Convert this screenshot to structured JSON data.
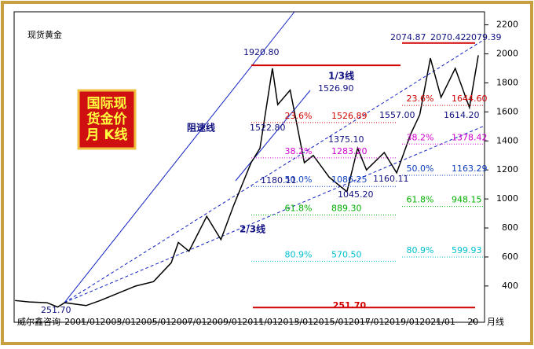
{
  "chart_data": {
    "type": "line",
    "title": "现货黄金",
    "box_title": [
      "国际现",
      "货金价",
      "月 K线"
    ],
    "source": "威尔鑫咨询",
    "period": "月线",
    "xlim": [
      1997.15,
      2023.65
    ],
    "xticks": [
      {
        "value": 2001,
        "label": "2001/01"
      },
      {
        "value": 2003,
        "label": "2003/01"
      },
      {
        "value": 2005,
        "label": "2005/01"
      },
      {
        "value": 2007,
        "label": "2007/01"
      },
      {
        "value": 2009,
        "label": "2009/01"
      },
      {
        "value": 2011,
        "label": "2011/01"
      },
      {
        "value": 2013,
        "label": "2013/01"
      },
      {
        "value": 2015,
        "label": "2015/01"
      },
      {
        "value": 2017,
        "label": "2017/01"
      },
      {
        "value": 2019,
        "label": "2019/01"
      },
      {
        "value": 2021,
        "label": "2021/01"
      },
      {
        "value": 2023,
        "label": "20"
      }
    ],
    "ylim": [
      150,
      2290
    ],
    "yticks": [
      400,
      600,
      800,
      1000,
      1200,
      1400,
      1600,
      1800,
      2000,
      2200
    ],
    "series": [
      {
        "name": "现货黄金",
        "color": "#000000",
        "x": [
          1997.2,
          1998,
          1999,
          1999.6,
          2000,
          2001.2,
          2002,
          2003,
          2004,
          2005,
          2006,
          2006.4,
          2007,
          2008,
          2008.8,
          2009.5,
          2010,
          2010.5,
          2011,
          2011.7,
          2012,
          2012.7,
          2013.5,
          2014,
          2014.9,
          2015.9,
          2016.5,
          2017,
          2018,
          2018.7,
          2019.5,
          2020,
          2020.6,
          2021.2,
          2022,
          2022.8,
          2023.3
        ],
        "values": [
          300,
          290,
          285,
          255,
          285,
          265,
          300,
          350,
          400,
          430,
          560,
          700,
          640,
          880,
          720,
          950,
          1100,
          1250,
          1350,
          1900,
          1650,
          1750,
          1250,
          1300,
          1150,
          1050,
          1350,
          1200,
          1320,
          1180,
          1450,
          1580,
          1970,
          1700,
          1900,
          1630,
          1990
        ]
      }
    ],
    "hlines": [
      {
        "value": 1920.8
      },
      {
        "value": 2074.87
      },
      {
        "value": 251.7,
        "label": "251.70"
      }
    ],
    "fib_left": [
      {
        "pct": "23.6%",
        "value": 1526.89,
        "color": "#d00000"
      },
      {
        "pct": "38.2%",
        "value": 1283.2,
        "value_label": "1283.20",
        "color": "#d000d0"
      },
      {
        "pct": "50.0%",
        "value": 1086.25,
        "color": "#1040c0"
      },
      {
        "pct": "61.8%",
        "value": 889.3,
        "value_label": "889.30",
        "color": "#00b000"
      },
      {
        "pct": "80.9%",
        "value": 570.5,
        "value_label": "570.50",
        "color": "#00c0d0"
      }
    ],
    "fib_right": [
      {
        "pct": "23.6%",
        "value": 1644.6,
        "value_label": "1644.60",
        "color": "#d00000"
      },
      {
        "pct": "38.2%",
        "value": 1378.42,
        "color": "#d000d0"
      },
      {
        "pct": "50.0%",
        "value": 1163.29,
        "color": "#1040c0"
      },
      {
        "pct": "61.8%",
        "value": 948.15,
        "color": "#00b000"
      },
      {
        "pct": "80.9%",
        "value": 599.93,
        "color": "#00c0d0"
      }
    ],
    "annotations": [
      "1920.80",
      "1/3线",
      "1526.90",
      "1522.80",
      "阻速线",
      "1375.10",
      "1180.11",
      "1045.20",
      "1160.11",
      "1557.00",
      "2/3线",
      "2074.87",
      "2070.42",
      "2079.39",
      "1614.20",
      "251.70"
    ]
  }
}
